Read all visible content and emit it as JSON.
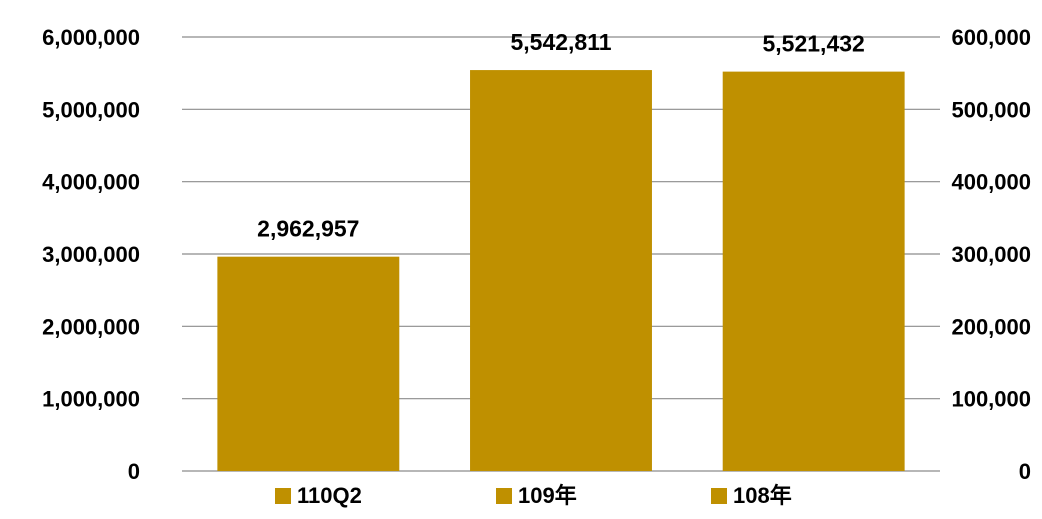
{
  "chart_data": {
    "type": "bar",
    "title": "",
    "categories": [
      "110Q2",
      "109年",
      "108年"
    ],
    "values": [
      2962957,
      5542811,
      5521432
    ],
    "data_labels": [
      "2,962,957",
      "5,542,811",
      "5,521,432"
    ],
    "ylim": [
      0,
      6000000
    ],
    "y_ticks": [
      0,
      1000000,
      2000000,
      3000000,
      4000000,
      5000000,
      6000000
    ],
    "y_tick_labels": [
      "0",
      "1,000,000",
      "2,000,000",
      "3,000,000",
      "4,000,000",
      "5,000,000",
      "6,000,000"
    ],
    "y2lim": [
      0,
      600000
    ],
    "y2_ticks": [
      0,
      100000,
      200000,
      300000,
      400000,
      500000,
      600000
    ],
    "y2_tick_labels": [
      "0",
      "100,000",
      "200,000",
      "300,000",
      "400,000",
      "500,000",
      "600,000"
    ],
    "legend": [
      "110Q2",
      "109年",
      "108年"
    ],
    "legend_position": "bottom",
    "grid": true,
    "bar_color": "#BF9000",
    "grid_color": "#8C8C8C"
  }
}
